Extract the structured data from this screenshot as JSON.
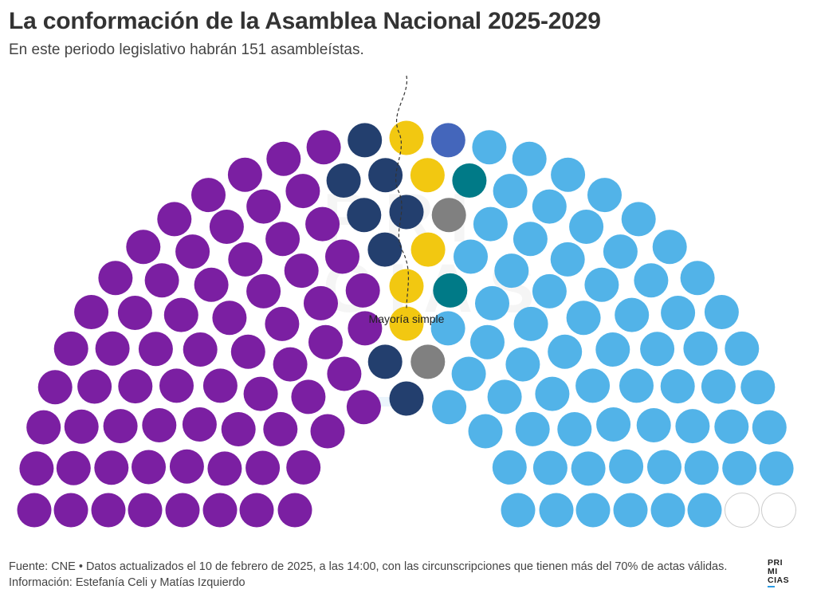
{
  "header": {
    "title": "La conformación de la Asamblea Nacional 2025-2029",
    "subtitle": "En este periodo legislativo habrán 151 asambleístas."
  },
  "chart_data": {
    "type": "parliament",
    "total_seats": 151,
    "colors": {
      "purple": "#7b1fa2",
      "navy": "#233f6e",
      "yellow": "#f2c811",
      "blue": "#4466bb",
      "gray": "#808080",
      "teal": "#007a87",
      "lightblue": "#52b3e8",
      "empty": "#ffffff"
    },
    "series": [
      {
        "color": "purple",
        "seats": 67
      },
      {
        "color": "navy",
        "seats": 8
      },
      {
        "color": "yellow",
        "seats": 5
      },
      {
        "color": "blue",
        "seats": 1
      },
      {
        "color": "gray",
        "seats": 2
      },
      {
        "color": "teal",
        "seats": 2
      },
      {
        "color": "lightblue",
        "seats": 64
      },
      {
        "color": "empty",
        "seats": 2
      }
    ],
    "annotations": [
      {
        "text": "Mayoría simple"
      }
    ]
  },
  "watermark": {
    "line1": "PRI",
    "line2": "CIAS"
  },
  "footer": {
    "source": "Fuente: CNE • Datos actualizados el 10 de febrero de 2025, a las 14:00, con las circunscripciones que tienen más del 70% de actas válidas.",
    "credits": "Información: Estefanía Celi y Matías Izquierdo"
  },
  "logo": {
    "line1": "PRI",
    "line2": "MI",
    "line3": "CIAS"
  }
}
